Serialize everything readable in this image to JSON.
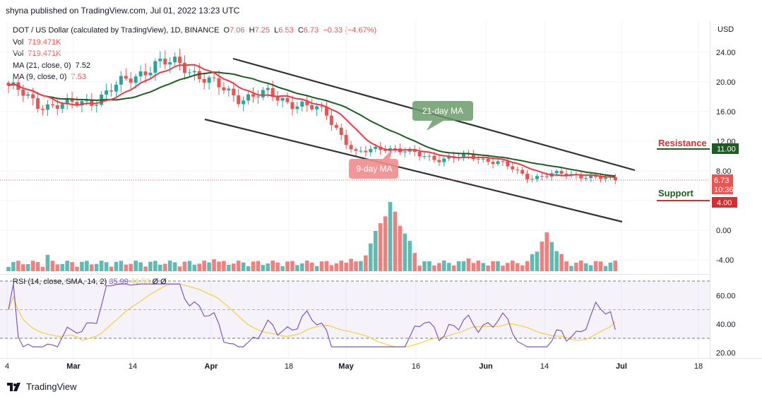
{
  "publisher": "shyna published on TradingView.com, Jul 01, 2022 13:23 UTC",
  "legend": {
    "symbol": "DOT / US Dollar (calculated by TradingView), 1D, BINANCE",
    "open_label": "O",
    "open": "7.06",
    "high_label": "H",
    "high": "7.25",
    "low_label": "L",
    "low": "6.53",
    "close_label": "C",
    "close": "6.73",
    "change": "−0.33 (−4.67%)",
    "vol1_label": "Vol",
    "vol1": "719.471K",
    "vol2_label": "Vol",
    "vol2": "719.471K",
    "ma21_label": "MA (21, close, 0)",
    "ma21": "7.52",
    "ma9_label": "MA (9, close, 0)",
    "ma9": "7.53"
  },
  "rsi_legend": {
    "label": "RSI (14, close, SMA, 14, 2)",
    "rsi": "35.99",
    "sma": "41.53",
    "extra1": "Ø",
    "extra2": "Ø"
  },
  "currency": "USD",
  "annotations": {
    "ma21_callout": "21-day MA",
    "ma9_callout": "9-day MA",
    "resistance_label": "Resistance",
    "resistance_value": "11.00",
    "support_label": "Support",
    "support_value": "4.00",
    "last_price": "6.73",
    "countdown": "10:36:18"
  },
  "footer": "TradingView",
  "colors": {
    "up": "#26a69a",
    "down": "#ef5350",
    "ma9": "#f23645",
    "ma21": "#1b5e20",
    "rsi": "#7e57c2",
    "rsi_sma": "#f5d03b",
    "trend": "#333333",
    "resistance": "#1b5e20",
    "support": "#d32f2f"
  },
  "chart_data": [
    {
      "type": "candlestick",
      "title": "DOT / US Dollar (calculated by TradingView), 1D, BINANCE",
      "y_axis_ticks": [
        24.0,
        20.0,
        16.0,
        12.0,
        8.0,
        4.0,
        0.0,
        -4.0
      ],
      "x_axis_ticks": [
        "4",
        "Mar",
        "14",
        "Apr",
        "18",
        "May",
        "16",
        "Jun",
        "14",
        "Jul",
        "18"
      ],
      "key_points": [
        {
          "date": "Feb 21",
          "close": 19.5
        },
        {
          "date": "Feb 28",
          "close": 17.0
        },
        {
          "date": "Mar 7",
          "close": 16.8
        },
        {
          "date": "Mar 14",
          "close": 17.6
        },
        {
          "date": "Mar 21",
          "close": 20.0
        },
        {
          "date": "Mar 28",
          "close": 22.3
        },
        {
          "date": "Apr 3",
          "close": 22.5
        },
        {
          "date": "Apr 8",
          "close": 19.8
        },
        {
          "date": "Apr 14",
          "close": 17.9
        },
        {
          "date": "Apr 21",
          "close": 18.3
        },
        {
          "date": "Apr 28",
          "close": 17.0
        },
        {
          "date": "May 5",
          "close": 15.8
        },
        {
          "date": "May 10",
          "close": 10.2
        },
        {
          "date": "May 13",
          "close": 11.3
        },
        {
          "date": "May 20",
          "close": 10.3
        },
        {
          "date": "May 27",
          "close": 9.6
        },
        {
          "date": "Jun 3",
          "close": 10.0
        },
        {
          "date": "Jun 10",
          "close": 9.1
        },
        {
          "date": "Jun 14",
          "close": 7.1
        },
        {
          "date": "Jun 21",
          "close": 7.6
        },
        {
          "date": "Jun 28",
          "close": 7.3
        },
        {
          "date": "Jul 1",
          "close": 6.73
        }
      ],
      "resistance": 11.0,
      "support": 4.0,
      "last_price": 6.73
    },
    {
      "type": "line",
      "title": "RSI (14, close, SMA, 14, 2)",
      "y_axis_ticks": [
        60.0,
        40.0,
        20.0
      ],
      "bands": [
        70,
        50,
        30
      ],
      "last_rsi": 35.99,
      "last_sma": 41.53
    }
  ]
}
